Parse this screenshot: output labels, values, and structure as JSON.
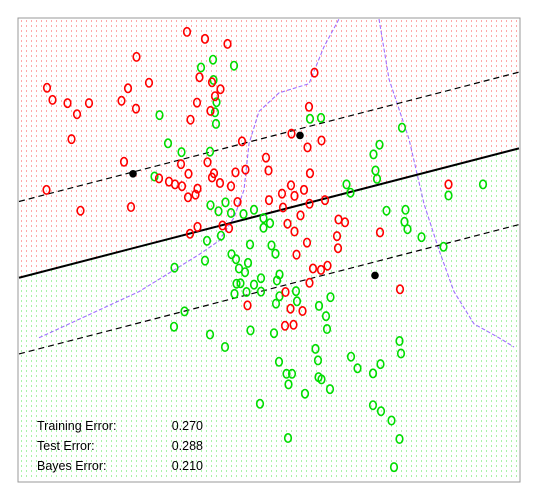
{
  "chart_data": {
    "type": "scatter",
    "title": "",
    "xlabel": "",
    "ylabel": "",
    "xlim": [
      0,
      1
    ],
    "ylim": [
      0,
      1
    ],
    "grid": false,
    "class_colors": {
      "red": "#ff0000",
      "green": "#00dd00"
    },
    "boundary_colors": {
      "svm": "#000000",
      "bayes": "#a070ff"
    },
    "svm_boundary": {
      "solid": [
        [
          0.0,
          0.44
        ],
        [
          1.0,
          0.72
        ]
      ],
      "upper_margin": [
        [
          0.0,
          0.605
        ],
        [
          1.0,
          0.885
        ]
      ],
      "lower_margin": [
        [
          0.0,
          0.275
        ],
        [
          1.0,
          0.555
        ]
      ]
    },
    "support_vectors": [
      [
        0.228,
        0.665
      ],
      [
        0.562,
        0.748
      ],
      [
        0.712,
        0.445
      ]
    ],
    "bayes_boundary": [
      [
        [
          0.04,
          0.31
        ],
        [
          0.14,
          0.36
        ],
        [
          0.24,
          0.41
        ],
        [
          0.3,
          0.45
        ],
        [
          0.36,
          0.49
        ],
        [
          0.4,
          0.52
        ],
        [
          0.43,
          0.57
        ],
        [
          0.45,
          0.63
        ],
        [
          0.46,
          0.73
        ],
        [
          0.48,
          0.8
        ],
        [
          0.52,
          0.84
        ],
        [
          0.58,
          0.86
        ],
        [
          0.61,
          0.94
        ],
        [
          0.64,
          1.0
        ]
      ],
      [
        [
          0.72,
          1.0
        ],
        [
          0.74,
          0.87
        ],
        [
          0.78,
          0.74
        ],
        [
          0.81,
          0.6
        ],
        [
          0.84,
          0.5
        ],
        [
          0.87,
          0.41
        ],
        [
          0.91,
          0.34
        ],
        [
          0.96,
          0.31
        ],
        [
          0.99,
          0.29
        ]
      ]
    ],
    "red_points": [
      [
        0.336,
        0.972
      ],
      [
        0.372,
        0.957
      ],
      [
        0.417,
        0.946
      ],
      [
        0.235,
        0.918
      ],
      [
        0.361,
        0.874
      ],
      [
        0.056,
        0.851
      ],
      [
        0.218,
        0.85
      ],
      [
        0.26,
        0.862
      ],
      [
        0.386,
        0.863
      ],
      [
        0.067,
        0.825
      ],
      [
        0.097,
        0.818
      ],
      [
        0.14,
        0.818
      ],
      [
        0.205,
        0.823
      ],
      [
        0.356,
        0.819
      ],
      [
        0.392,
        0.833
      ],
      [
        0.403,
        0.848
      ],
      [
        0.234,
        0.806
      ],
      [
        0.383,
        0.801
      ],
      [
        0.116,
        0.794
      ],
      [
        0.343,
        0.782
      ],
      [
        0.58,
        0.81
      ],
      [
        0.591,
        0.884
      ],
      [
        0.105,
        0.74
      ],
      [
        0.446,
        0.735
      ],
      [
        0.545,
        0.752
      ],
      [
        0.577,
        0.722
      ],
      [
        0.605,
        0.737
      ],
      [
        0.494,
        0.7
      ],
      [
        0.21,
        0.691
      ],
      [
        0.324,
        0.686
      ],
      [
        0.377,
        0.69
      ],
      [
        0.339,
        0.665
      ],
      [
        0.39,
        0.666
      ],
      [
        0.433,
        0.668
      ],
      [
        0.453,
        0.674
      ],
      [
        0.582,
        0.666
      ],
      [
        0.499,
        0.672
      ],
      [
        0.28,
        0.655
      ],
      [
        0.3,
        0.648
      ],
      [
        0.312,
        0.642
      ],
      [
        0.326,
        0.638
      ],
      [
        0.357,
        0.633
      ],
      [
        0.386,
        0.657
      ],
      [
        0.055,
        0.63
      ],
      [
        0.338,
        0.614
      ],
      [
        0.353,
        0.62
      ],
      [
        0.402,
        0.645
      ],
      [
        0.424,
        0.638
      ],
      [
        0.437,
        0.604
      ],
      [
        0.544,
        0.64
      ],
      [
        0.526,
        0.622
      ],
      [
        0.551,
        0.617
      ],
      [
        0.57,
        0.63
      ],
      [
        0.5,
        0.608
      ],
      [
        0.528,
        0.592
      ],
      [
        0.581,
        0.6
      ],
      [
        0.612,
        0.608
      ],
      [
        0.563,
        0.575
      ],
      [
        0.224,
        0.593
      ],
      [
        0.123,
        0.585
      ],
      [
        0.537,
        0.557
      ],
      [
        0.551,
        0.54
      ],
      [
        0.639,
        0.566
      ],
      [
        0.636,
        0.53
      ],
      [
        0.638,
        0.504
      ],
      [
        0.652,
        0.56
      ],
      [
        0.342,
        0.535
      ],
      [
        0.407,
        0.553
      ],
      [
        0.42,
        0.547
      ],
      [
        0.576,
        0.516
      ],
      [
        0.555,
        0.49
      ],
      [
        0.588,
        0.46
      ],
      [
        0.604,
        0.457
      ],
      [
        0.617,
        0.466
      ],
      [
        0.581,
        0.429
      ],
      [
        0.533,
        0.409
      ],
      [
        0.543,
        0.373
      ],
      [
        0.567,
        0.368
      ],
      [
        0.549,
        0.338
      ],
      [
        0.532,
        0.336
      ],
      [
        0.762,
        0.415
      ],
      [
        0.457,
        0.38
      ],
      [
        0.722,
        0.538
      ],
      [
        0.859,
        0.642
      ],
      [
        0.357,
        0.55
      ]
    ],
    "green_points": [
      [
        0.388,
        0.912
      ],
      [
        0.43,
        0.899
      ],
      [
        0.364,
        0.895
      ],
      [
        0.389,
        0.868
      ],
      [
        0.395,
        0.82
      ],
      [
        0.392,
        0.798
      ],
      [
        0.281,
        0.792
      ],
      [
        0.394,
        0.773
      ],
      [
        0.582,
        0.784
      ],
      [
        0.604,
        0.786
      ],
      [
        0.766,
        0.765
      ],
      [
        0.721,
        0.728
      ],
      [
        0.298,
        0.731
      ],
      [
        0.325,
        0.712
      ],
      [
        0.382,
        0.713
      ],
      [
        0.709,
        0.707
      ],
      [
        0.713,
        0.672
      ],
      [
        0.271,
        0.659
      ],
      [
        0.655,
        0.642
      ],
      [
        0.663,
        0.624
      ],
      [
        0.716,
        0.654
      ],
      [
        0.928,
        0.642
      ],
      [
        0.735,
        0.585
      ],
      [
        0.773,
        0.587
      ],
      [
        0.859,
        0.618
      ],
      [
        0.383,
        0.597
      ],
      [
        0.413,
        0.603
      ],
      [
        0.399,
        0.584
      ],
      [
        0.424,
        0.58
      ],
      [
        0.449,
        0.578
      ],
      [
        0.47,
        0.587
      ],
      [
        0.489,
        0.569
      ],
      [
        0.502,
        0.558
      ],
      [
        0.489,
        0.548
      ],
      [
        0.771,
        0.561
      ],
      [
        0.777,
        0.545
      ],
      [
        0.805,
        0.528
      ],
      [
        0.376,
        0.52
      ],
      [
        0.404,
        0.531
      ],
      [
        0.462,
        0.512
      ],
      [
        0.505,
        0.51
      ],
      [
        0.513,
        0.492
      ],
      [
        0.425,
        0.491
      ],
      [
        0.434,
        0.48
      ],
      [
        0.458,
        0.472
      ],
      [
        0.44,
        0.46
      ],
      [
        0.452,
        0.452
      ],
      [
        0.484,
        0.439
      ],
      [
        0.521,
        0.447
      ],
      [
        0.311,
        0.462
      ],
      [
        0.849,
        0.507
      ],
      [
        0.372,
        0.477
      ],
      [
        0.443,
        0.428
      ],
      [
        0.435,
        0.427
      ],
      [
        0.47,
        0.425
      ],
      [
        0.484,
        0.41
      ],
      [
        0.516,
        0.434
      ],
      [
        0.554,
        0.411
      ],
      [
        0.521,
        0.4
      ],
      [
        0.431,
        0.405
      ],
      [
        0.455,
        0.409
      ],
      [
        0.514,
        0.384
      ],
      [
        0.556,
        0.389
      ],
      [
        0.623,
        0.398
      ],
      [
        0.6,
        0.379
      ],
      [
        0.614,
        0.357
      ],
      [
        0.331,
        0.367
      ],
      [
        0.616,
        0.329
      ],
      [
        0.31,
        0.334
      ],
      [
        0.382,
        0.317
      ],
      [
        0.463,
        0.326
      ],
      [
        0.51,
        0.32
      ],
      [
        0.412,
        0.29
      ],
      [
        0.593,
        0.286
      ],
      [
        0.598,
        0.261
      ],
      [
        0.52,
        0.258
      ],
      [
        0.535,
        0.232
      ],
      [
        0.539,
        0.209
      ],
      [
        0.546,
        0.232
      ],
      [
        0.605,
        0.22
      ],
      [
        0.664,
        0.269
      ],
      [
        0.677,
        0.244
      ],
      [
        0.708,
        0.233
      ],
      [
        0.723,
        0.253
      ],
      [
        0.761,
        0.303
      ],
      [
        0.764,
        0.276
      ],
      [
        0.622,
        0.199
      ],
      [
        0.572,
        0.189
      ],
      [
        0.482,
        0.167
      ],
      [
        0.708,
        0.164
      ],
      [
        0.724,
        0.151
      ],
      [
        0.745,
        0.131
      ],
      [
        0.761,
        0.091
      ],
      [
        0.538,
        0.093
      ],
      [
        0.75,
        0.03
      ],
      [
        0.599,
        0.225
      ]
    ],
    "annotations": [
      {
        "label": "Training Error:",
        "value": "0.270"
      },
      {
        "label": "Test Error:",
        "value": "0.288"
      },
      {
        "label": "Bayes Error:",
        "value": "0.210"
      }
    ]
  }
}
